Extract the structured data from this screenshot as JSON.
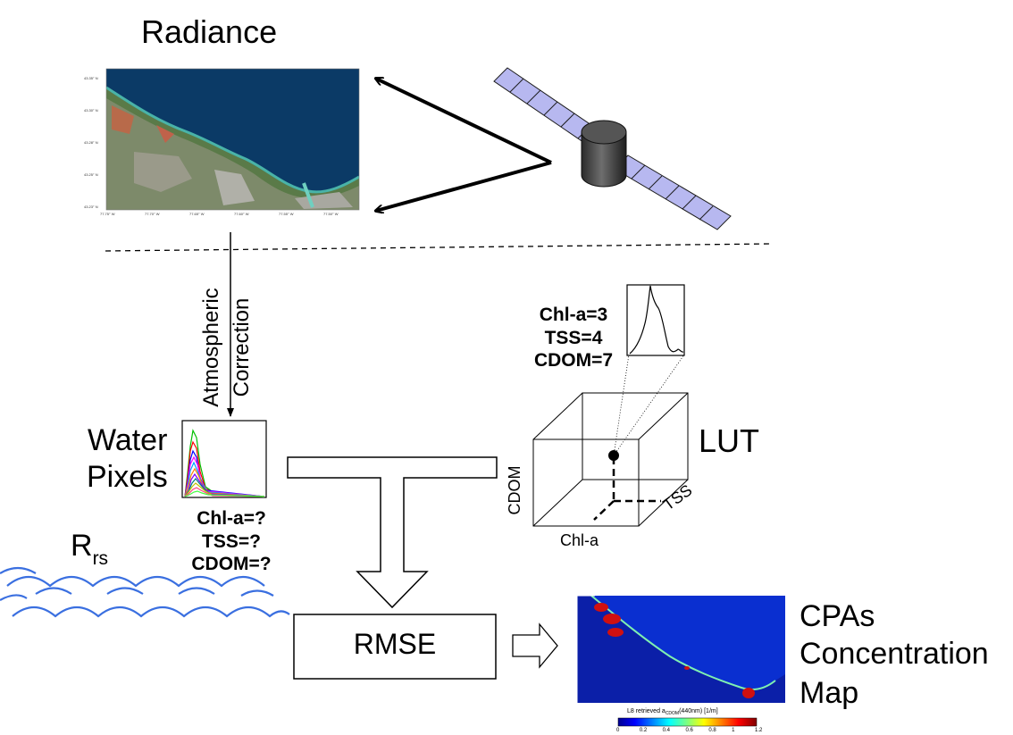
{
  "radiance": {
    "title": "Radiance",
    "lat_ticks": [
      "43.35° N",
      "43.30° N",
      "43.28° N",
      "43.25° N",
      "43.23° N"
    ],
    "lon_ticks": [
      "77.75° W",
      "77.70° W",
      "77.65° W",
      "77.60° W",
      "77.55° W",
      "77.50° W"
    ]
  },
  "atmospheric_correction": {
    "line1": "Atmospheric",
    "line2": "Correction"
  },
  "water_pixels": {
    "line1": "Water",
    "line2": "Pixels"
  },
  "unknowns": {
    "line1": "Chl-a=?",
    "line2": "TSS=?",
    "line3": "CDOM=?"
  },
  "rrs": {
    "base": "R",
    "sub": "rs"
  },
  "lut": {
    "label": "LUT",
    "values": {
      "line1": "Chl-a=3",
      "line2": "TSS=4",
      "line3": "CDOM=7"
    },
    "axis_cdom": "CDOM",
    "axis_chla": "Chl-a",
    "axis_tss": "TSS"
  },
  "rmse": {
    "label": "RMSE"
  },
  "output": {
    "line1": "CPAs",
    "line2": "Concentration",
    "line3": "Map",
    "colorbar_title_pre": "L8 retrieved a",
    "colorbar_title_sub": "CDOM",
    "colorbar_title_post": "(440nm) [1/m]",
    "colorbar_ticks": [
      "0",
      "0.2",
      "0.4",
      "0.6",
      "0.8",
      "1",
      "1.2"
    ]
  },
  "colors": {
    "water_line": "#3a6fe0",
    "solar_panel": "#b7b8f0",
    "map_background": "#0a2fd0",
    "lake": "#0b3a66"
  }
}
